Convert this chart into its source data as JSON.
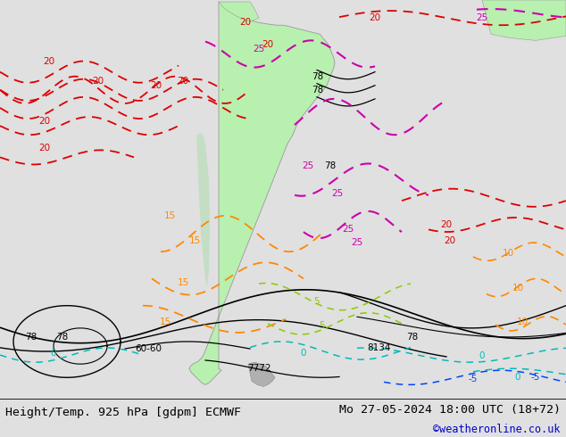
{
  "title_left": "Height/Temp. 925 hPa [gdpm] ECMWF",
  "title_right": "Mo 27-05-2024 18:00 UTC (18+72)",
  "credit": "©weatheronline.co.uk",
  "bg_color": "#e0e0e0",
  "fig_width": 6.34,
  "fig_height": 4.9,
  "dpi": 100,
  "title_fontsize": 9.5,
  "credit_fontsize": 8.5,
  "credit_color": "#0000cc",
  "title_color": "#000000",
  "land_color": "#b8f0b0",
  "sea_color": "#e0e0e0",
  "highland_color": "#c8c8c8",
  "contour_color": "#000000",
  "temp_colors": {
    "25": "#cc00aa",
    "20": "#dd0000",
    "15": "#ff8800",
    "10": "#ffaa00",
    "5": "#88cc00",
    "0": "#00bbbb",
    "-5": "#0044ff"
  }
}
